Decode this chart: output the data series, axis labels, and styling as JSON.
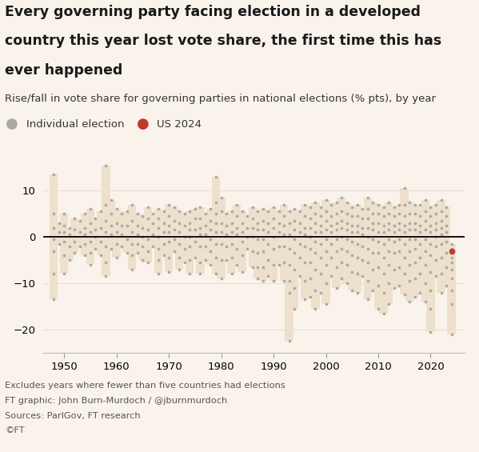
{
  "title_line1": "Every governing party facing election in a developed",
  "title_line2": "country this year lost vote share, the first time this has",
  "title_line3": "ever happened",
  "subtitle": "Rise/fall in vote share for governing parties in national elections (% pts), by year",
  "background_color": "#faf3ec",
  "dot_color": "#aba9a3",
  "bar_color": "#ede0cc",
  "us2024_color": "#c0392b",
  "zero_line_color": "#111111",
  "title_fontsize": 12.5,
  "subtitle_fontsize": 9.5,
  "footer_fontsize": 8.2,
  "legend_fontsize": 9.5,
  "axis_fontsize": 9.5,
  "ylim": [
    -25,
    18
  ],
  "xlim": [
    1946,
    2026.5
  ],
  "yticks": [
    -20,
    -10,
    0,
    10
  ],
  "xticks": [
    1950,
    1960,
    1970,
    1980,
    1990,
    2000,
    2010,
    2020
  ],
  "footer_lines": [
    "Excludes years where fewer than five countries had elections",
    "FT graphic: John Burn-Murdoch / @jburnmurdoch",
    "Sources: ParlGov, FT research",
    "©FT"
  ],
  "us2024_value": -3.0,
  "election_data": {
    "1948": [
      13.5,
      5.0,
      2.0,
      -0.5,
      -3.0,
      -8.0,
      -13.5
    ],
    "1949": [
      3.0,
      1.0,
      -1.5
    ],
    "1950": [
      5.0,
      2.5,
      1.0,
      -1.0,
      -4.0,
      -8.0
    ],
    "1951": [
      2.0,
      0.5,
      -2.0,
      -5.0
    ],
    "1952": [
      4.0,
      1.5,
      -1.0,
      -3.5
    ],
    "1953": [
      3.5,
      1.0,
      -2.0
    ],
    "1954": [
      5.0,
      2.0,
      0.5,
      -1.5,
      -4.0
    ],
    "1955": [
      6.0,
      3.0,
      1.0,
      -1.0,
      -3.5,
      -6.0
    ],
    "1956": [
      4.0,
      1.5,
      0.0,
      -2.5
    ],
    "1957": [
      5.5,
      2.0,
      -1.0,
      -4.0
    ],
    "1958": [
      15.5,
      7.0,
      3.5,
      1.0,
      -2.0,
      -5.5,
      -8.5
    ],
    "1959": [
      8.0,
      5.0,
      2.5,
      0.5,
      -2.5
    ],
    "1960": [
      6.0,
      3.0,
      1.0,
      -1.5,
      -4.5
    ],
    "1961": [
      5.0,
      2.5,
      0.5,
      -2.0
    ],
    "1962": [
      5.5,
      2.5,
      -0.5,
      -3.5
    ],
    "1963": [
      7.0,
      3.5,
      1.0,
      -1.5,
      -4.0,
      -7.0
    ],
    "1964": [
      5.0,
      2.5,
      0.5,
      -1.5,
      -3.5
    ],
    "1965": [
      4.5,
      2.0,
      0.0,
      -2.0,
      -5.0
    ],
    "1966": [
      6.5,
      4.0,
      1.5,
      -0.5,
      -3.0,
      -5.5
    ],
    "1967": [
      5.0,
      3.0,
      0.5,
      -2.0
    ],
    "1968": [
      6.0,
      4.0,
      2.0,
      0.0,
      -2.5,
      -5.0,
      -8.0
    ],
    "1969": [
      5.5,
      3.0,
      1.0,
      -1.5,
      -4.0
    ],
    "1970": [
      7.0,
      4.5,
      2.5,
      1.0,
      -1.0,
      -4.5,
      -7.5
    ],
    "1971": [
      6.5,
      3.5,
      1.5,
      -0.5,
      -3.0
    ],
    "1972": [
      5.5,
      3.0,
      1.0,
      -1.5,
      -4.5,
      -7.0
    ],
    "1973": [
      5.0,
      2.5,
      0.0,
      -2.5,
      -5.5
    ],
    "1974": [
      5.5,
      3.0,
      1.5,
      0.0,
      -2.0,
      -5.0,
      -8.0
    ],
    "1975": [
      6.0,
      4.0,
      1.5,
      -1.0,
      -4.5
    ],
    "1976": [
      6.5,
      4.0,
      2.0,
      0.5,
      -2.0,
      -5.5,
      -8.0
    ],
    "1977": [
      5.0,
      2.5,
      0.5,
      -2.0,
      -5.0
    ],
    "1978": [
      6.0,
      3.5,
      1.5,
      -0.5,
      -3.0,
      -6.0
    ],
    "1979": [
      13.0,
      7.5,
      5.0,
      3.0,
      1.0,
      -1.5,
      -4.5,
      -8.0
    ],
    "1980": [
      8.5,
      5.5,
      3.0,
      1.0,
      -1.5,
      -5.0,
      -9.0
    ],
    "1981": [
      5.0,
      2.5,
      0.5,
      -2.0,
      -5.0
    ],
    "1982": [
      5.5,
      3.0,
      1.0,
      -1.5,
      -4.5,
      -8.0
    ],
    "1983": [
      7.0,
      4.5,
      2.0,
      0.5,
      -2.5,
      -6.0
    ],
    "1984": [
      5.5,
      3.0,
      1.0,
      -1.0,
      -4.0,
      -7.5
    ],
    "1985": [
      4.5,
      2.0,
      0.0,
      -2.5
    ],
    "1986": [
      6.5,
      4.0,
      2.0,
      0.0,
      -3.0,
      -6.5
    ],
    "1987": [
      5.5,
      3.0,
      1.5,
      -0.5,
      -3.5,
      -6.5,
      -9.0
    ],
    "1988": [
      6.0,
      3.5,
      1.5,
      -0.5,
      -3.0,
      -6.5,
      -9.5
    ],
    "1989": [
      5.5,
      3.0,
      1.0,
      -1.5,
      -5.0,
      -8.5
    ],
    "1990": [
      6.5,
      4.0,
      2.0,
      0.0,
      -2.5,
      -6.0,
      -9.5
    ],
    "1991": [
      5.5,
      3.0,
      1.0,
      -2.0,
      -6.0
    ],
    "1992": [
      7.0,
      4.5,
      2.5,
      0.5,
      -2.0,
      -5.5,
      -9.5
    ],
    "1993": [
      5.5,
      3.0,
      0.5,
      -2.5,
      -6.0,
      -9.5,
      -12.0,
      -22.5
    ],
    "1994": [
      6.0,
      3.5,
      1.5,
      -0.5,
      -3.5,
      -7.0,
      -11.0,
      -15.5
    ],
    "1995": [
      5.5,
      3.0,
      1.0,
      -1.5,
      -4.5,
      -8.5
    ],
    "1996": [
      7.0,
      4.5,
      2.0,
      0.5,
      -2.0,
      -5.5,
      -9.5,
      -13.5
    ],
    "1997": [
      6.5,
      4.0,
      2.0,
      0.0,
      -2.5,
      -5.5,
      -9.0,
      -13.0
    ],
    "1998": [
      7.5,
      5.0,
      3.0,
      1.0,
      -1.0,
      -3.5,
      -7.0,
      -11.5,
      -15.5
    ],
    "1999": [
      6.5,
      4.5,
      2.5,
      1.0,
      -1.5,
      -4.5,
      -8.0,
      -12.0
    ],
    "2000": [
      8.0,
      5.5,
      3.5,
      1.5,
      -0.5,
      -3.0,
      -6.0,
      -10.0,
      -14.5
    ],
    "2001": [
      7.0,
      4.5,
      2.5,
      1.0,
      -1.5,
      -4.5,
      -8.5
    ],
    "2002": [
      7.5,
      5.0,
      3.0,
      1.5,
      -0.5,
      -3.0,
      -6.5,
      -11.0
    ],
    "2003": [
      8.5,
      5.5,
      3.5,
      2.0,
      0.0,
      -2.5,
      -5.5,
      -9.0
    ],
    "2004": [
      7.5,
      5.0,
      3.0,
      1.5,
      -0.5,
      -3.0,
      -6.0,
      -10.0
    ],
    "2005": [
      6.5,
      4.5,
      2.5,
      1.0,
      -1.0,
      -4.0,
      -7.5,
      -11.5
    ],
    "2006": [
      7.0,
      4.5,
      2.5,
      1.0,
      -1.5,
      -4.5,
      -8.0,
      -12.0
    ],
    "2007": [
      6.0,
      4.0,
      2.0,
      0.5,
      -2.0,
      -5.0,
      -8.5
    ],
    "2008": [
      8.5,
      6.0,
      4.0,
      2.0,
      0.0,
      -2.5,
      -5.5,
      -9.5,
      -13.5
    ],
    "2009": [
      7.5,
      5.0,
      3.0,
      1.5,
      -0.5,
      -3.5,
      -7.0,
      -11.5
    ],
    "2010": [
      7.0,
      5.0,
      3.0,
      1.0,
      -1.0,
      -3.5,
      -6.5,
      -10.5,
      -15.5
    ],
    "2011": [
      6.5,
      4.5,
      2.5,
      1.0,
      -1.5,
      -4.5,
      -8.0,
      -12.0,
      -16.5
    ],
    "2012": [
      7.5,
      5.0,
      3.0,
      1.5,
      -0.5,
      -3.0,
      -6.0,
      -10.0,
      -14.5
    ],
    "2013": [
      6.5,
      4.5,
      2.5,
      1.0,
      -1.0,
      -3.5,
      -7.0,
      -11.0
    ],
    "2014": [
      7.0,
      5.0,
      3.0,
      1.5,
      -0.5,
      -3.0,
      -6.5,
      -10.5
    ],
    "2015": [
      10.5,
      7.0,
      4.5,
      2.5,
      1.0,
      -1.5,
      -4.5,
      -8.0,
      -12.5
    ],
    "2016": [
      7.5,
      5.0,
      3.0,
      1.5,
      -0.5,
      -3.0,
      -6.0,
      -9.5,
      -14.0
    ],
    "2017": [
      7.0,
      5.0,
      3.0,
      1.5,
      -0.5,
      -2.5,
      -5.5,
      -9.0,
      -13.0
    ],
    "2018": [
      7.0,
      4.5,
      2.5,
      1.0,
      -1.5,
      -4.5,
      -8.0,
      -12.0
    ],
    "2019": [
      8.0,
      5.5,
      3.5,
      1.5,
      -0.5,
      -3.0,
      -6.0,
      -10.0,
      -14.0
    ],
    "2020": [
      6.5,
      4.5,
      2.5,
      1.0,
      -1.5,
      -4.0,
      -7.5,
      -11.5,
      -15.5,
      -20.5
    ],
    "2021": [
      7.0,
      5.0,
      3.0,
      1.5,
      0.0,
      -2.0,
      -5.0,
      -8.5
    ],
    "2022": [
      8.0,
      5.5,
      3.5,
      2.0,
      0.5,
      -1.5,
      -4.5,
      -8.0,
      -12.0
    ],
    "2023": [
      6.5,
      4.5,
      2.5,
      1.0,
      -1.0,
      -3.5,
      -6.5,
      -10.5
    ],
    "2024": [
      -1.5,
      -2.5,
      -3.5,
      -4.5,
      -5.5,
      -7.0,
      -9.0,
      -11.5,
      -14.5,
      -21.0
    ]
  }
}
